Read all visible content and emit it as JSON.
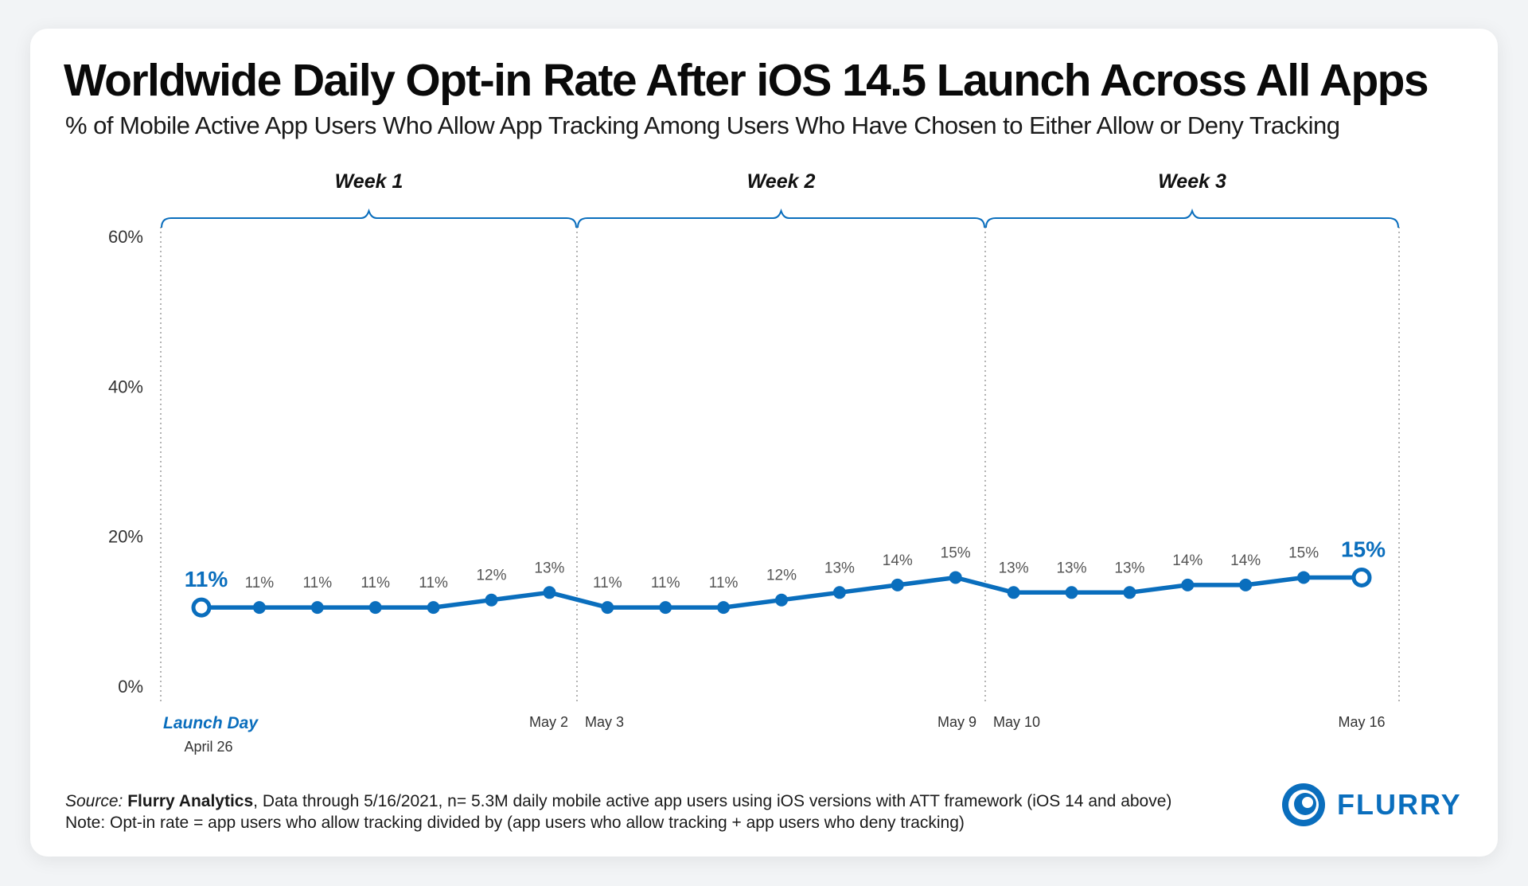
{
  "title": "Worldwide Daily Opt-in Rate After iOS 14.5 Launch Across All Apps",
  "subtitle": "% of Mobile Active App Users Who Allow App Tracking Among Users Who Have Chosen to Either Allow or Deny Tracking",
  "source": {
    "label": "Source:",
    "brand": "Flurry Analytics",
    "text": ", Data through 5/16/2021, n= 5.3M daily mobile active app users using iOS versions with ATT framework (iOS 14 and above)",
    "note": "Note: Opt-in rate = app users who allow tracking divided by (app users who allow tracking + app users who deny tracking)"
  },
  "logo": {
    "text": "FLURRY",
    "icon": "flurry-swirl-icon"
  },
  "colors": {
    "accent": "#0a6ebd",
    "label": "#555555",
    "grid": "#9a9a9a"
  },
  "chart_data": {
    "type": "line",
    "title": "Worldwide Daily Opt-in Rate After iOS 14.5 Launch Across All Apps",
    "ylim": [
      0,
      60
    ],
    "yticks": [
      0,
      20,
      40,
      60
    ],
    "ytick_labels": [
      "0%",
      "20%",
      "40%",
      "60%"
    ],
    "weeks": [
      {
        "label": "Week 1",
        "start": 0,
        "end": 6
      },
      {
        "label": "Week 2",
        "start": 7,
        "end": 13
      },
      {
        "label": "Week 3",
        "start": 14,
        "end": 20
      }
    ],
    "values": [
      10.5,
      10.5,
      10.5,
      10.5,
      10.5,
      11.5,
      12.5,
      10.5,
      10.5,
      10.5,
      11.5,
      12.5,
      13.5,
      14.5,
      12.5,
      12.5,
      12.5,
      13.5,
      13.5,
      14.5,
      14.5
    ],
    "data_labels": [
      "11%",
      "11%",
      "11%",
      "11%",
      "11%",
      "12%",
      "13%",
      "11%",
      "11%",
      "11%",
      "12%",
      "13%",
      "14%",
      "15%",
      "13%",
      "13%",
      "13%",
      "14%",
      "14%",
      "15%",
      "15%"
    ],
    "x_labels": [
      {
        "index": 0,
        "text": "Launch Day",
        "subtext": "April 26"
      },
      {
        "index": 6,
        "text": "May 2"
      },
      {
        "index": 7,
        "text": "May 3"
      },
      {
        "index": 13,
        "text": "May 9"
      },
      {
        "index": 14,
        "text": "May 10"
      },
      {
        "index": 20,
        "text": "May 16"
      }
    ]
  }
}
